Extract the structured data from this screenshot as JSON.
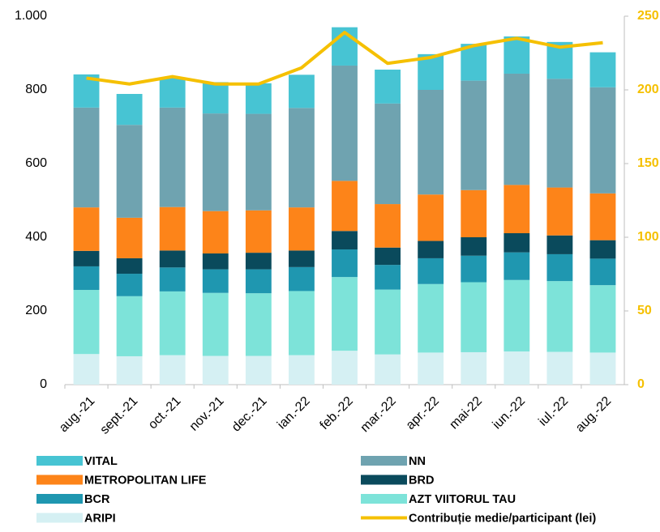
{
  "chart_data": {
    "type": "bar",
    "stacked": true,
    "categories": [
      "aug.-21",
      "sept.-21",
      "oct.-21",
      "nov.-21",
      "dec.-21",
      "ian.-22",
      "feb.-22",
      "mar.-22",
      "apr.-22",
      "mai-22",
      "iun.-22",
      "iul.-22",
      "aug.-22"
    ],
    "series": [
      {
        "name": "VITAL",
        "color": "#47c4d3",
        "values": [
          90,
          84,
          82,
          85,
          83,
          90,
          104,
          92,
          97,
          100,
          101,
          100,
          95
        ]
      },
      {
        "name": "NN",
        "color": "#6fa3b0",
        "values": [
          271,
          252,
          270,
          265,
          262,
          270,
          313,
          273,
          284,
          297,
          302,
          295,
          288
        ]
      },
      {
        "name": "METROPOLITAN LIFE",
        "color": "#fd8419",
        "values": [
          118,
          110,
          118,
          115,
          115,
          117,
          136,
          118,
          126,
          128,
          131,
          130,
          127
        ]
      },
      {
        "name": "BRD",
        "color": "#0a4a5c",
        "values": [
          42,
          42,
          46,
          43,
          45,
          45,
          50,
          47,
          47,
          50,
          52,
          51,
          50
        ]
      },
      {
        "name": "BCR",
        "color": "#1f97b0",
        "values": [
          64,
          61,
          65,
          64,
          65,
          65,
          75,
          67,
          70,
          72,
          75,
          73,
          72
        ]
      },
      {
        "name": "AZT VIITORUL TAU",
        "color": "#7de3d9",
        "values": [
          174,
          163,
          173,
          171,
          170,
          174,
          200,
          176,
          186,
          190,
          194,
          192,
          183
        ]
      },
      {
        "name": "ARIPI",
        "color": "#d5f0f3",
        "values": [
          83,
          77,
          80,
          78,
          78,
          80,
          92,
          82,
          87,
          88,
          90,
          89,
          87
        ]
      },
      {
        "name": "Contribuție medie/participant (lei)",
        "color": "#f5c000",
        "type": "line",
        "axis": "y2",
        "values": [
          208,
          204,
          209,
          204,
          204,
          215,
          239,
          218,
          222,
          230,
          235,
          229,
          232
        ]
      }
    ],
    "ylim": [
      0,
      1000
    ],
    "yticks": [
      0,
      200,
      400,
      600,
      800,
      {
        "value": 1000,
        "label": "1.000"
      }
    ],
    "y2lim": [
      0,
      250
    ],
    "y2ticks": [
      0,
      50,
      100,
      150,
      200,
      250
    ],
    "grid": false,
    "legend": "bottom"
  }
}
